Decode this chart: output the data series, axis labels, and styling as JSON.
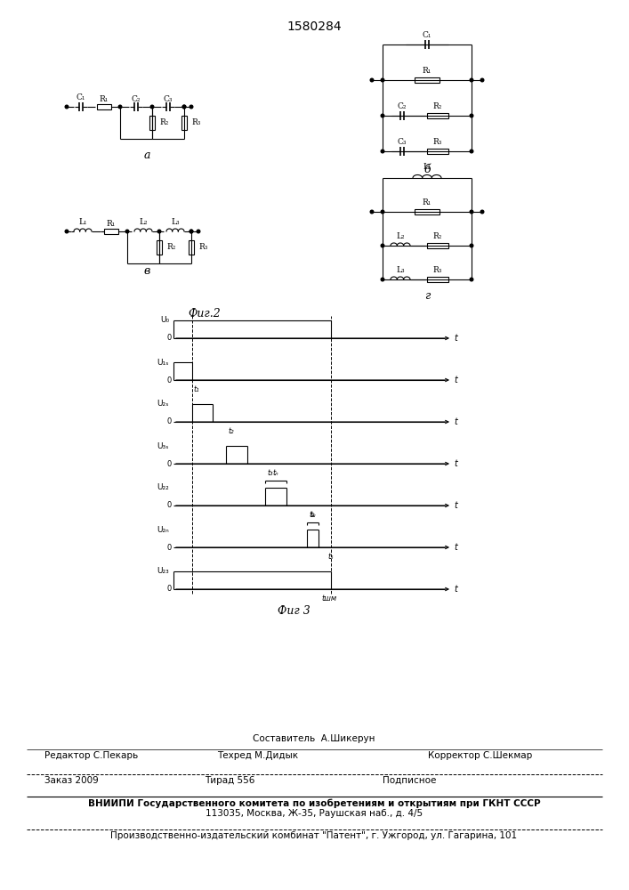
{
  "patent_number": "1580284",
  "fig2_label": "Фиг.2",
  "fig3_label": "Фиг 3",
  "footer_line1": "Составитель  А.Шикерун",
  "footer_line2_left": "Редактор С.Пекарь",
  "footer_line2_mid": "Техред М.Дидык",
  "footer_line2_right": "Корректор С.Шекмар",
  "footer_line3_left": "Заказ 2009",
  "footer_line3_mid": "Тирад 556",
  "footer_line3_right": "Подписное",
  "footer_line4": "ВНИИПИ Государственного комитета по изобретениям и открытиям при ГКНТ СССР",
  "footer_line5": "113035, Москва, Ж-35, Раушская наб., д. 4/5",
  "footer_line6": "Производственно-издательский комбинат \"Патент\", г. Ужгород, ул. Гагарина, 101",
  "bg_color": "#ffffff",
  "line_color": "#000000"
}
